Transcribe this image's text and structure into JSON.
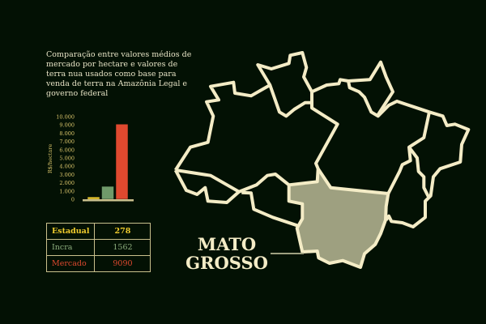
{
  "title": "Comparação entre valores médios de mercado por hectare e valores de terra nua usados como base para venda de terra na Amazônia Legal e governo federal",
  "chart_data": {
    "type": "bar",
    "categories": [
      "Estadual",
      "Incra",
      "Mercado"
    ],
    "values": [
      278,
      1562,
      9090
    ],
    "colors": [
      "#f2cd2e",
      "#6f9a6a",
      "#e0492f"
    ],
    "ylabel": "R$/hectare",
    "ylim": [
      0,
      10000
    ],
    "yticks": [
      "0",
      "1.000",
      "2.000",
      "3.000",
      "4.000",
      "5.000",
      "6.000",
      "7.000",
      "8.000",
      "9.000",
      "10.000"
    ],
    "grid": false
  },
  "table": {
    "rows": [
      {
        "label": "Estadual",
        "value": "278",
        "color": "#f2cd2e"
      },
      {
        "label": "Incra",
        "value": "1562",
        "color": "#8fb07f"
      },
      {
        "label": "Mercado",
        "value": "9090",
        "color": "#e0492f"
      }
    ]
  },
  "map": {
    "highlight_label": "MATO GROSSO",
    "highlight_color": "#9ea080",
    "outline_color": "#f4ecc6"
  }
}
